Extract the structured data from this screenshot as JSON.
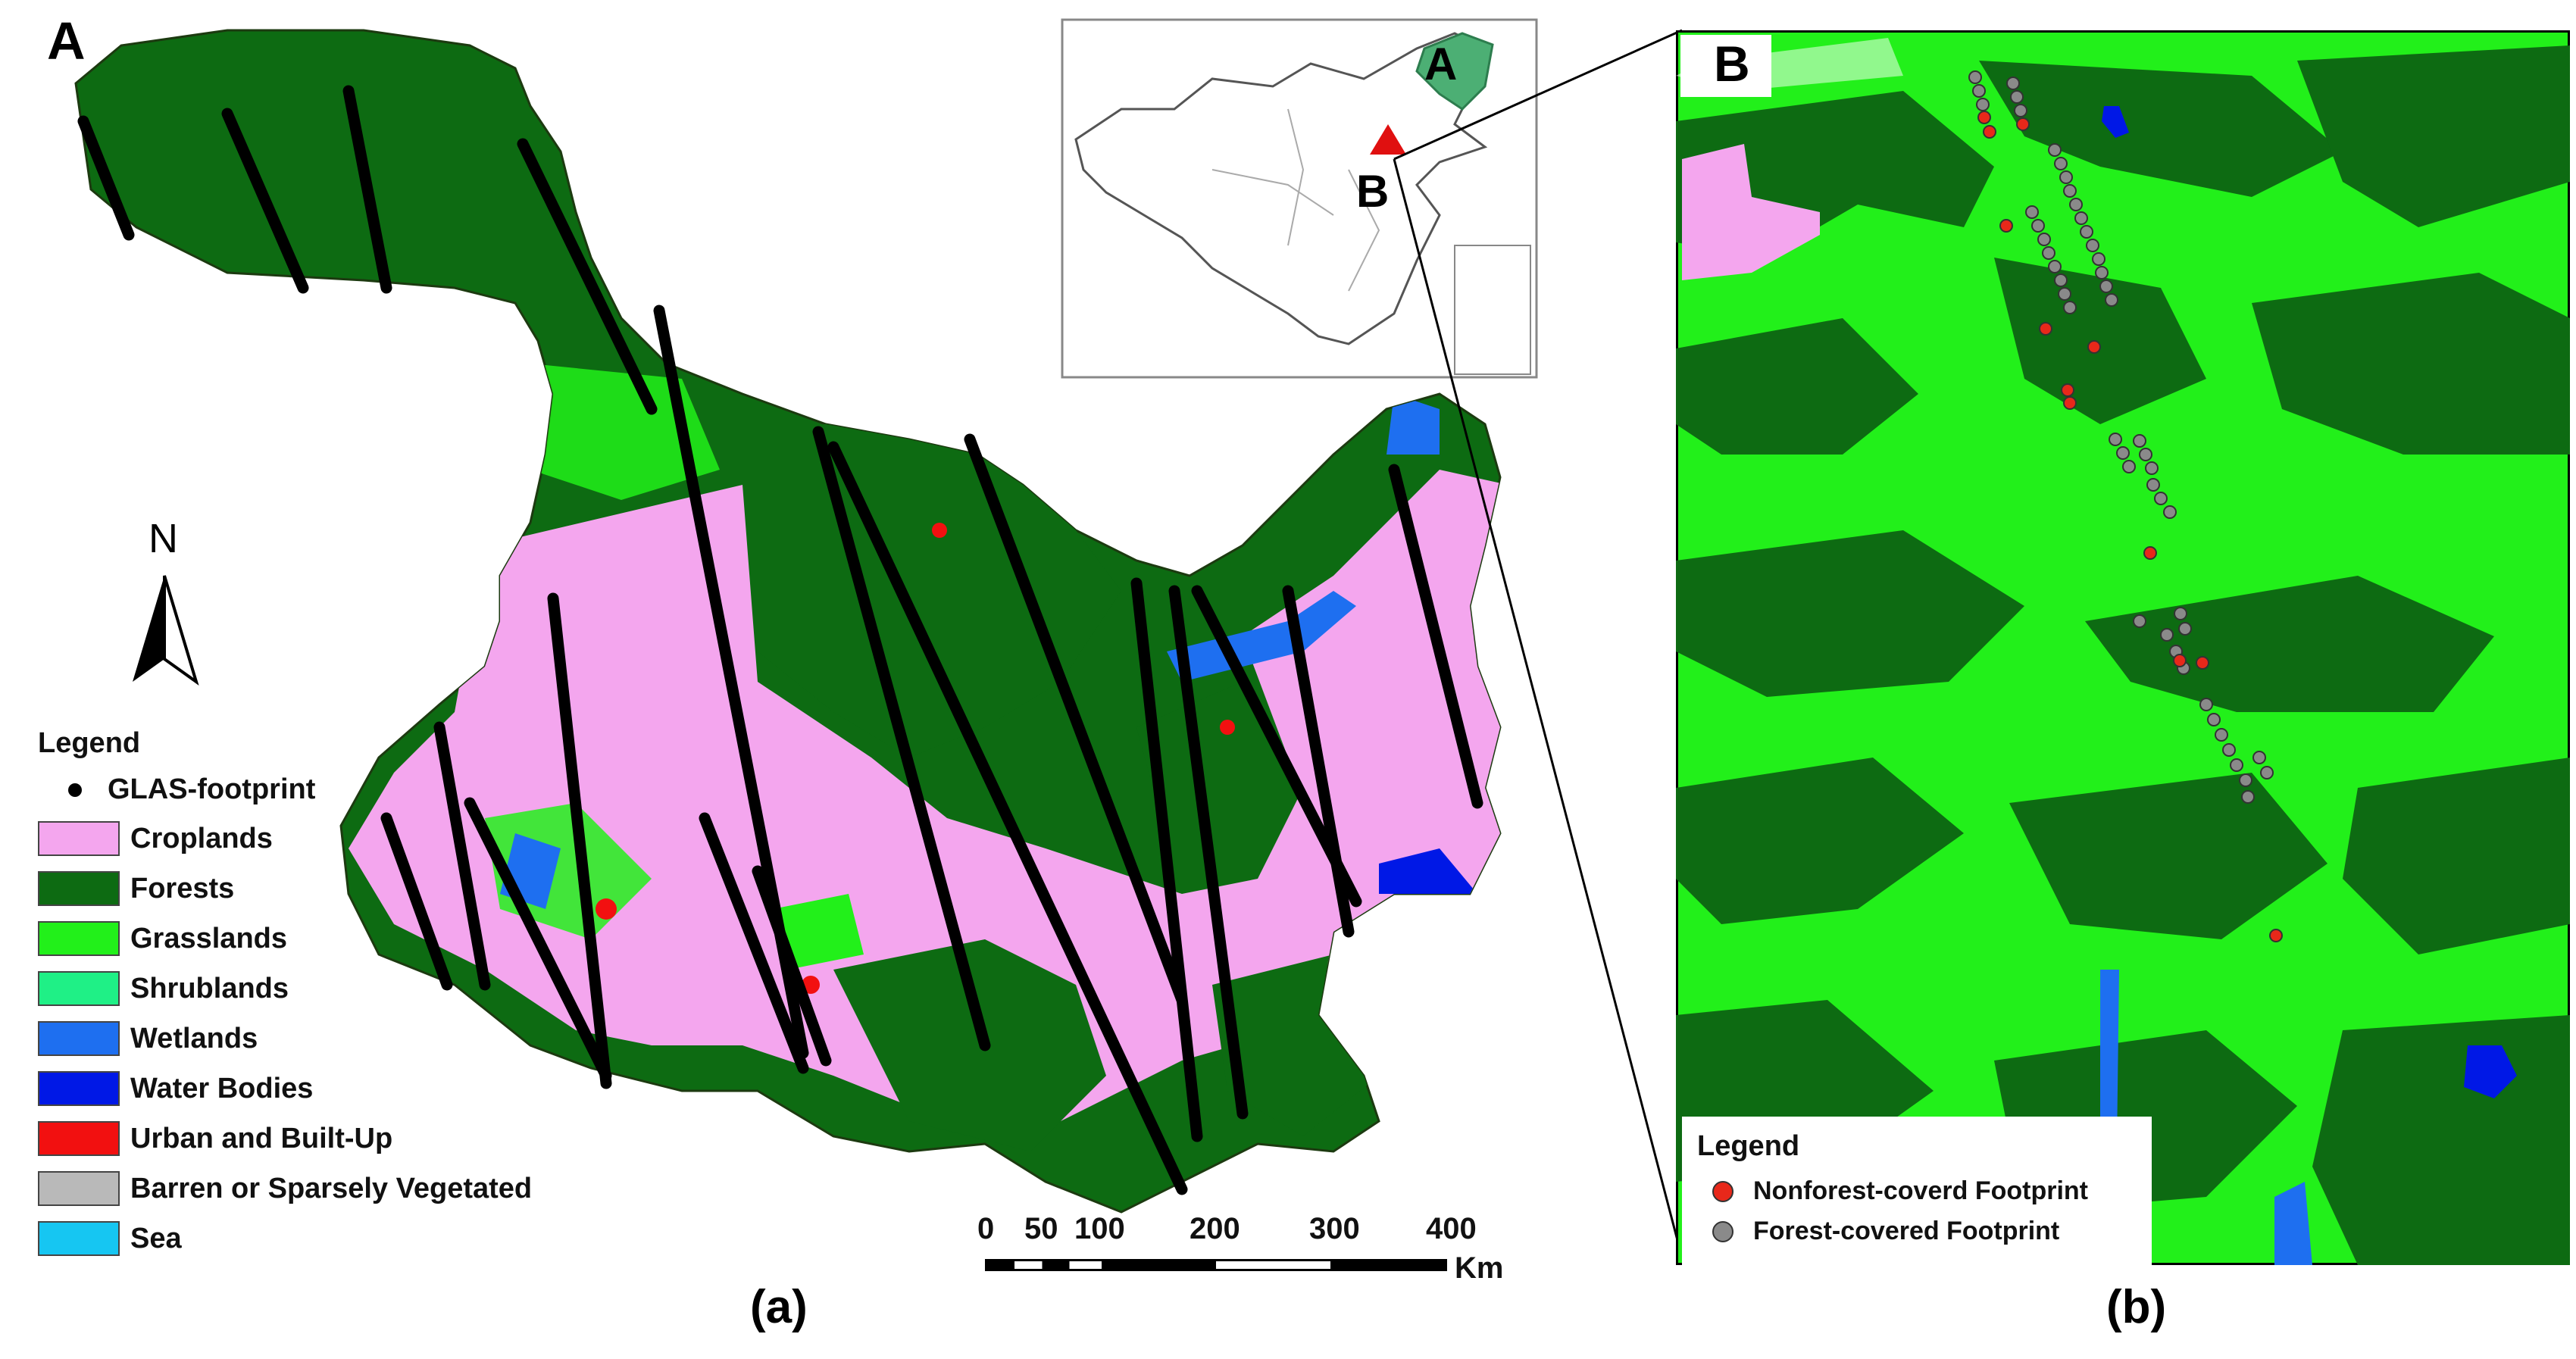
{
  "panel_a": {
    "letter": "A",
    "north_label": "N",
    "legend": {
      "title": "Legend",
      "footprint_label": "GLAS-footprint",
      "classes": [
        {
          "label": "Croplands",
          "color": "#f4a6ee"
        },
        {
          "label": "Forests",
          "color": "#0d6b12"
        },
        {
          "label": "Grasslands",
          "color": "#22f01a"
        },
        {
          "label": "Shrublands",
          "color": "#1ff086"
        },
        {
          "label": "Wetlands",
          "color": "#1e6ff0"
        },
        {
          "label": "Water Bodies",
          "color": "#0018e6"
        },
        {
          "label": "Urban and Built-Up",
          "color": "#f21010"
        },
        {
          "label": "Barren or Sparsely Vegetated",
          "color": "#b9b9b9"
        },
        {
          "label": "Sea",
          "color": "#16c6f2"
        }
      ]
    },
    "scalebar": {
      "ticks": [
        "0",
        "50",
        "100",
        "200",
        "300",
        "400"
      ],
      "unit": "Km"
    }
  },
  "inset": {
    "label_a": "A",
    "label_b": "B"
  },
  "panel_b": {
    "letter": "B",
    "legend": {
      "title": "Legend",
      "items": [
        {
          "label": "Nonforest-coverd Footprint",
          "color": "#e8281a"
        },
        {
          "label": "Forest-covered Footprint",
          "color": "#8a8a8a"
        }
      ]
    }
  },
  "captions": {
    "a": "(a)",
    "b": "(b)"
  },
  "colors": {
    "forest": "#0d6b12",
    "grass": "#22f01a",
    "crop": "#f4a6ee",
    "water": "#0018e6",
    "wetland": "#1e6ff0"
  }
}
